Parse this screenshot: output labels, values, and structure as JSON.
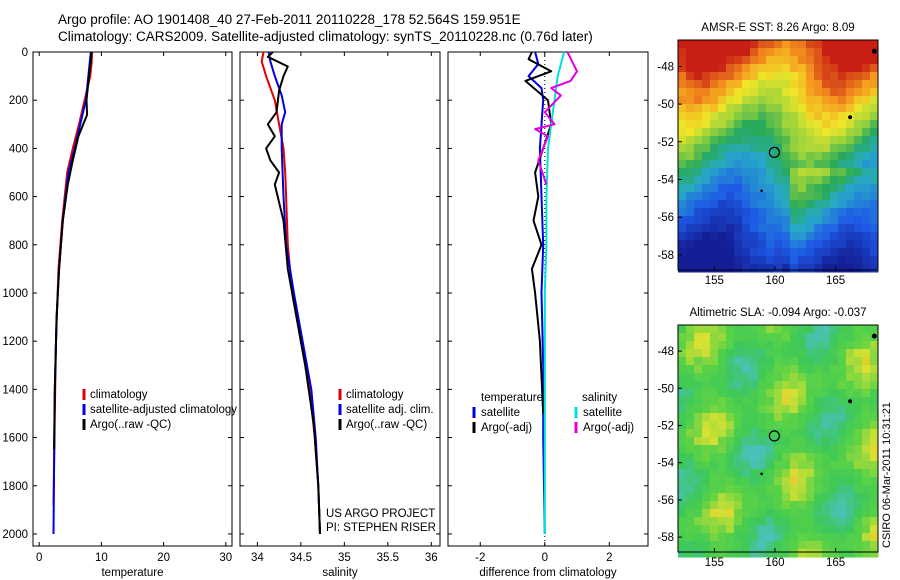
{
  "header": {
    "line1": "Argo profile: AO 1901408_40 27-Feb-2011 20110228_178 52.564S 159.951E",
    "line2": "Climatology: CARS2009. Satellite-adjusted climatology: synTS_20110228.nc (0.76d later)"
  },
  "chart_data": [
    {
      "type": "line",
      "id": "temperature",
      "xlabel": "temperature",
      "xlim": [
        -1,
        31
      ],
      "ylim": [
        2050,
        0
      ],
      "xticks": [
        0,
        10,
        20,
        30
      ],
      "yticks": [
        0,
        200,
        400,
        600,
        800,
        1000,
        1200,
        1400,
        1600,
        1800,
        2000
      ],
      "legend": [
        "climatology",
        "satellite-adjusted climatology",
        "Argo(..raw -QC)"
      ],
      "series": [
        {
          "name": "climatology",
          "color": "#e00000",
          "x": [
            8.5,
            8.4,
            8.2,
            7.3,
            6.4,
            5.4,
            4.5,
            3.7,
            3.1,
            2.7,
            2.5,
            2.3
          ],
          "y": [
            0,
            50,
            100,
            200,
            300,
            400,
            500,
            700,
            900,
            1200,
            1500,
            1880
          ]
        },
        {
          "name": "satellite-adjusted climatology",
          "color": "#0000e0",
          "x": [
            8.3,
            8.1,
            7.5,
            6.6,
            5.7,
            4.7,
            3.8,
            3.2,
            2.8,
            2.5,
            2.4,
            2.3
          ],
          "y": [
            0,
            50,
            200,
            300,
            400,
            500,
            700,
            900,
            1100,
            1400,
            1700,
            2000
          ]
        },
        {
          "name": "Argo(..raw -QC)",
          "color": "#000000",
          "x": [
            8.4,
            8.3,
            8.0,
            7.6,
            7.7,
            6.3,
            5.4,
            4.6,
            3.8,
            3.2,
            2.8,
            2.5,
            2.4
          ],
          "y": [
            0,
            40,
            100,
            200,
            260,
            350,
            450,
            550,
            700,
            900,
            1100,
            1400,
            1650
          ]
        }
      ]
    },
    {
      "type": "line",
      "id": "salinity",
      "xlabel": "salinity",
      "xlim": [
        33.8,
        36.1
      ],
      "ylim": [
        2050,
        0
      ],
      "xticks": [
        34,
        34.5,
        35,
        35.5,
        36
      ],
      "legend": [
        "climatology",
        "satellite adj. clim.",
        "Argo(..raw -QC)"
      ],
      "annotation": [
        "US ARGO PROJECT",
        "PI: STEPHEN RISER"
      ],
      "series": [
        {
          "name": "climatology",
          "color": "#e00000",
          "x": [
            34.07,
            34.05,
            34.1,
            34.2,
            34.25,
            34.3,
            34.32,
            34.33,
            34.35,
            34.4,
            34.5,
            34.6,
            34.66,
            34.7,
            34.72
          ],
          "y": [
            0,
            40,
            100,
            200,
            300,
            400,
            500,
            600,
            800,
            1000,
            1200,
            1400,
            1600,
            1800,
            2000
          ]
        },
        {
          "name": "satellite adj. clim.",
          "color": "#0000e0",
          "x": [
            34.13,
            34.15,
            34.2,
            34.28,
            34.32,
            34.28,
            34.28,
            34.3,
            34.33,
            34.42,
            34.52,
            34.62,
            34.67,
            34.7,
            34.72
          ],
          "y": [
            0,
            40,
            100,
            180,
            250,
            300,
            400,
            600,
            800,
            1000,
            1200,
            1400,
            1600,
            1800,
            2000
          ]
        },
        {
          "name": "Argo(..raw -QC)",
          "color": "#000000",
          "x": [
            34.18,
            34.12,
            34.35,
            34.3,
            34.25,
            34.22,
            34.12,
            34.2,
            34.1,
            34.15,
            34.25,
            34.2,
            34.3,
            34.35,
            34.45,
            34.55,
            34.65,
            34.7,
            34.72
          ],
          "y": [
            0,
            20,
            60,
            100,
            160,
            250,
            300,
            350,
            400,
            450,
            500,
            550,
            700,
            900,
            1100,
            1300,
            1550,
            1800,
            2000
          ]
        }
      ]
    },
    {
      "type": "line",
      "id": "difference",
      "xlabel": "difference from climatology",
      "xlim": [
        -3,
        3.2
      ],
      "ylim": [
        2050,
        0
      ],
      "xticks": [
        -2,
        0,
        2
      ],
      "legend_headers": [
        "temperature",
        "salinity"
      ],
      "legend": [
        "satellite",
        "Argo(-adj)",
        "satellite",
        "Argo(-adj)"
      ],
      "series": [
        {
          "name": "temperature satellite",
          "color": "#0000e0",
          "x": [
            -0.3,
            -0.2,
            -0.5,
            -0.1,
            -0.05,
            -0.1,
            -0.15,
            -0.1,
            -0.05,
            -0.1,
            -0.05,
            -0.05,
            0.0
          ],
          "y": [
            0,
            50,
            100,
            150,
            200,
            300,
            400,
            600,
            800,
            1000,
            1300,
            1600,
            2000
          ]
        },
        {
          "name": "temperature Argo(-adj)",
          "color": "#000000",
          "x": [
            -0.4,
            -0.5,
            0.2,
            -0.6,
            0.1,
            0.2,
            -0.05,
            -0.3,
            -0.2,
            -0.35,
            -0.1,
            -0.4,
            -0.3,
            -0.15,
            -0.05
          ],
          "y": [
            0,
            30,
            80,
            120,
            200,
            300,
            400,
            500,
            600,
            700,
            800,
            900,
            1000,
            1200,
            1500
          ]
        },
        {
          "name": "salinity satellite",
          "color": "#00e0e0",
          "x": [
            0.6,
            0.5,
            0.4,
            0.3,
            0.2,
            0.1,
            0.05,
            0.05,
            0.0,
            0.0,
            0.0,
            0.0
          ],
          "y": [
            0,
            50,
            100,
            200,
            300,
            400,
            600,
            800,
            1000,
            1400,
            1800,
            2000
          ]
        },
        {
          "name": "salinity Argo(-adj)",
          "color": "#e000e0",
          "x": [
            0.7,
            1.0,
            0.8,
            0.2,
            0.5,
            0.0,
            0.3,
            -0.3,
            0.1,
            -0.2,
            0.05
          ],
          "y": [
            0,
            80,
            120,
            150,
            180,
            250,
            300,
            320,
            350,
            450,
            550
          ]
        }
      ]
    }
  ],
  "maps": [
    {
      "title": "AMSR-E SST: 8.26 Argo: 8.09",
      "xticks": [
        155,
        160,
        165
      ],
      "yticks": [
        -48,
        -50,
        -52,
        -54,
        -56,
        -58
      ],
      "xlim": [
        152,
        168.5
      ],
      "ylim": [
        -46.6,
        -58.8
      ],
      "profile": [
        159.95,
        -52.56
      ]
    },
    {
      "title": "Altimetric SLA: -0.094 Argo: -0.037",
      "xticks": [
        155,
        160,
        165
      ],
      "yticks": [
        -48,
        -50,
        -52,
        -54,
        -56,
        -58
      ],
      "xlim": [
        152,
        168.5
      ],
      "ylim": [
        -46.6,
        -58.8
      ],
      "profile": [
        159.95,
        -52.56
      ]
    }
  ],
  "side_stamp": "CSIRO 06-Mar-2011 10:31:21"
}
